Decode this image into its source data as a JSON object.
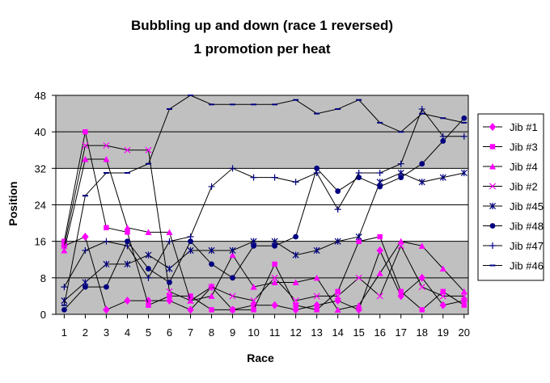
{
  "chart_data": {
    "type": "line",
    "title": "Bubbling up and down (race 1 reversed)",
    "subtitle": "1 promotion per heat",
    "xlabel": "Race",
    "ylabel": "Position",
    "x": [
      1,
      2,
      3,
      4,
      5,
      6,
      7,
      8,
      9,
      10,
      11,
      12,
      13,
      14,
      15,
      16,
      17,
      18,
      19,
      20
    ],
    "xlim": [
      1,
      20
    ],
    "ylim": [
      0,
      48
    ],
    "yticks": [
      0,
      8,
      16,
      24,
      32,
      40,
      48
    ],
    "grid": true,
    "shaded_bands": [
      [
        0,
        16
      ],
      [
        32,
        48
      ]
    ],
    "legend_position": "right",
    "colors": {
      "magenta": "#ff00ff",
      "navy": "#000080",
      "shade": "#c0c0c0",
      "frame": "#000000"
    },
    "series": [
      {
        "name": "Jib #1",
        "marker": "diamond",
        "color": "#ff00ff",
        "values": [
          15,
          17,
          1,
          3,
          3,
          3,
          1,
          6,
          1,
          2,
          2,
          1,
          2,
          3,
          1,
          14,
          4,
          8,
          2,
          3
        ]
      },
      {
        "name": "Jib #3",
        "marker": "square",
        "color": "#ff00ff",
        "values": [
          16,
          40,
          19,
          18,
          2,
          4,
          4,
          1,
          1,
          1,
          11,
          2,
          1,
          5,
          16,
          17,
          5,
          1,
          5,
          2
        ]
      },
      {
        "name": "Jib #4",
        "marker": "triangle",
        "color": "#ff00ff",
        "values": [
          14,
          34,
          34,
          19,
          18,
          18,
          3,
          4,
          13,
          6,
          7,
          7,
          8,
          1,
          2,
          9,
          16,
          15,
          10,
          5
        ]
      },
      {
        "name": "Jib #2",
        "marker": "x",
        "color": "#ff00ff",
        "values": [
          15,
          37,
          37,
          36,
          36,
          5,
          3,
          6,
          4,
          3,
          8,
          3,
          4,
          4,
          8,
          4,
          15,
          6,
          4,
          4
        ]
      },
      {
        "name": "Jib #45",
        "marker": "star",
        "color": "#000080",
        "values": [
          3,
          7,
          11,
          11,
          13,
          10,
          14,
          14,
          14,
          16,
          16,
          13,
          14,
          16,
          17,
          29,
          31,
          29,
          30,
          31
        ]
      },
      {
        "name": "Jib #48",
        "marker": "circle",
        "color": "#000080",
        "values": [
          1,
          6,
          6,
          16,
          10,
          7,
          16,
          11,
          8,
          15,
          15,
          17,
          32,
          27,
          30,
          28,
          30,
          33,
          38,
          43
        ]
      },
      {
        "name": "Jib #47",
        "marker": "plus",
        "color": "#000080",
        "values": [
          6,
          14,
          16,
          15,
          8,
          16,
          17,
          28,
          32,
          30,
          30,
          29,
          31,
          23,
          31,
          31,
          33,
          45,
          39,
          39
        ]
      },
      {
        "name": "Jib #46",
        "marker": "dash",
        "color": "#000080",
        "values": [
          2,
          26,
          31,
          31,
          33,
          45,
          48,
          46,
          46,
          46,
          46,
          47,
          44,
          45,
          47,
          42,
          40,
          44,
          43,
          42
        ]
      }
    ]
  }
}
